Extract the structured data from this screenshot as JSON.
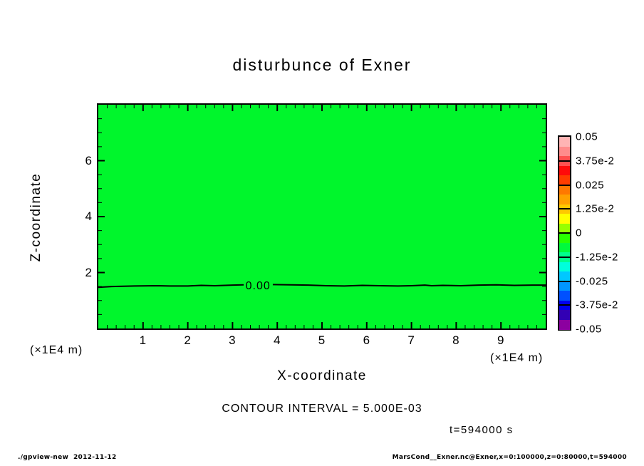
{
  "title": "disturbunce of Exner",
  "axes": {
    "x": {
      "label": "X-coordinate",
      "unit": "(×1E4 m)",
      "range": [
        0,
        10
      ],
      "major_ticks": [
        1,
        2,
        3,
        4,
        5,
        6,
        7,
        8,
        9
      ],
      "minor_step": 0.2
    },
    "y": {
      "label": "Z-coordinate",
      "range": [
        0,
        8
      ],
      "major_ticks": [
        2,
        4,
        6
      ],
      "minor_step": 0.5
    }
  },
  "colorbar": {
    "labels": [
      "0.05",
      "3.75e-2",
      "0.025",
      "1.25e-2",
      "0",
      "-1.25e-2",
      "-0.025",
      "-3.75e-2",
      "-0.05"
    ],
    "colors_top_to_bottom": [
      "#FFB4B4",
      "#FF8C8C",
      "#FF5050",
      "#FF0A0A",
      "#FF3C00",
      "#FF7800",
      "#FFA000",
      "#FFC800",
      "#FFFF00",
      "#96FF00",
      "#28FF00",
      "#00FA3C",
      "#00FF8C",
      "#00FFDC",
      "#00C8FF",
      "#0096FF",
      "#0050FF",
      "#0000F0",
      "#3200B4",
      "#8C00A0"
    ],
    "frame_color": "#000000"
  },
  "notes": {
    "contour_interval": "CONTOUR INTERVAL = 5.000E-03",
    "time": "t=594000 s"
  },
  "footer": {
    "left": "./gpview-new  2012-11-12",
    "right": "MarsCond__Exner.nc@Exner,x=0:100000,z=0:80000,t=594000"
  },
  "chart_data": {
    "type": "heatmap",
    "subtype": "filled-contour",
    "title": "disturbunce of Exner",
    "xlabel": "X-coordinate",
    "ylabel": "Z-coordinate",
    "x_unit": "(×1E4 m)",
    "xlim": [
      0,
      10
    ],
    "ylim": [
      0,
      8
    ],
    "x_major_ticks": [
      1,
      2,
      3,
      4,
      5,
      6,
      7,
      8,
      9
    ],
    "x_minor_step": 0.2,
    "y_major_ticks": [
      2,
      4,
      6
    ],
    "y_minor_step": 0.5,
    "grid": false,
    "legend_position": "colorbar-right",
    "contour_interval": "5.000E-03",
    "time": "t=594000 s",
    "levels": [
      0.05,
      0.0375,
      0.025,
      0.0125,
      0,
      -0.0125,
      -0.025,
      -0.0375,
      -0.05
    ],
    "field_summary": "Exner disturbance is approximately 0 over the whole domain (uniform green fill); a single 0.00 contour line runs horizontally near z = 1.5 (×1E4 m)",
    "fill_color": "#00F62C",
    "zero_contour": {
      "label": "0.00",
      "label_x": 3.57,
      "label_z": 1.56,
      "points_left": [
        [
          0,
          1.47
        ],
        [
          0.3,
          1.5
        ],
        [
          0.8,
          1.52
        ],
        [
          1.3,
          1.53
        ],
        [
          1.6,
          1.52
        ],
        [
          2.0,
          1.52
        ],
        [
          2.3,
          1.54
        ],
        [
          2.6,
          1.53
        ],
        [
          3.0,
          1.55
        ],
        [
          3.25,
          1.56
        ]
      ],
      "points_right": [
        [
          3.9,
          1.57
        ],
        [
          4.3,
          1.56
        ],
        [
          4.7,
          1.55
        ],
        [
          5.1,
          1.53
        ],
        [
          5.5,
          1.52
        ],
        [
          5.9,
          1.54
        ],
        [
          6.3,
          1.53
        ],
        [
          6.7,
          1.52
        ],
        [
          7.0,
          1.53
        ],
        [
          7.3,
          1.55
        ],
        [
          7.45,
          1.53
        ],
        [
          7.7,
          1.54
        ],
        [
          8.1,
          1.53
        ],
        [
          8.5,
          1.55
        ],
        [
          8.9,
          1.56
        ],
        [
          9.3,
          1.54
        ],
        [
          9.7,
          1.55
        ],
        [
          10,
          1.55
        ]
      ]
    }
  }
}
